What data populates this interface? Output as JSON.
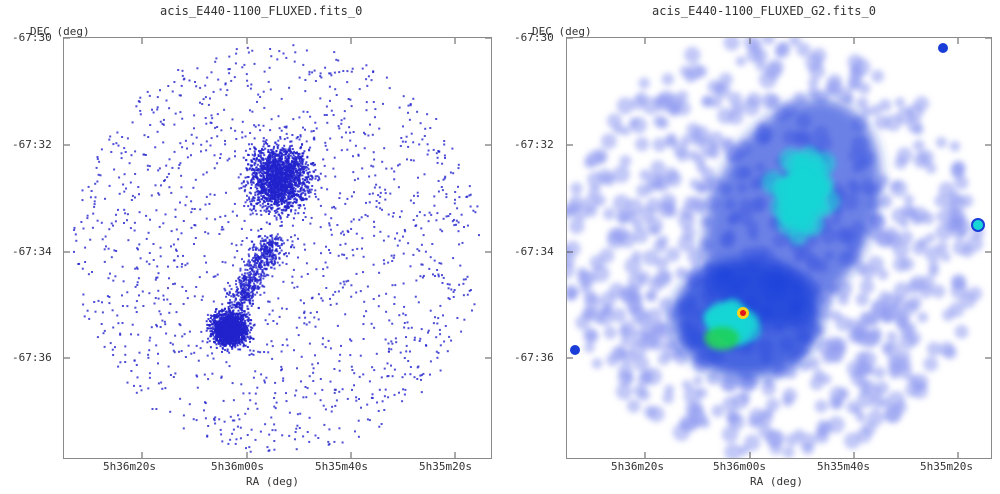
{
  "panels": [
    {
      "title": "acis_E440-1100_FLUXED.fits_0",
      "ylabel": "DEC (deg)",
      "xlabel": "RA (deg)",
      "yticks": [
        "-67:30",
        "-67:32",
        "-67:34",
        "-67:36"
      ],
      "xticks": [
        "5h36m20s",
        "5h36m00s",
        "5h35m40s",
        "5h35m20s"
      ]
    },
    {
      "title": "acis_E440-1100_FLUXED_G2.fits_0",
      "ylabel": "DEC (deg)",
      "xlabel": "RA (deg)",
      "yticks": [
        "-67:30",
        "-67:32",
        "-67:34",
        "-67:36"
      ],
      "xticks": [
        "5h36m20s",
        "5h36m00s",
        "5h35m40s",
        "5h35m20s"
      ]
    }
  ],
  "colors": {
    "raw_counts": "#2222cc",
    "smoothed_low": "#8f9af0",
    "smoothed_mid": "#1a3dd8",
    "smoothed_high": "#19d6d6",
    "peak": "#e0141b"
  }
}
